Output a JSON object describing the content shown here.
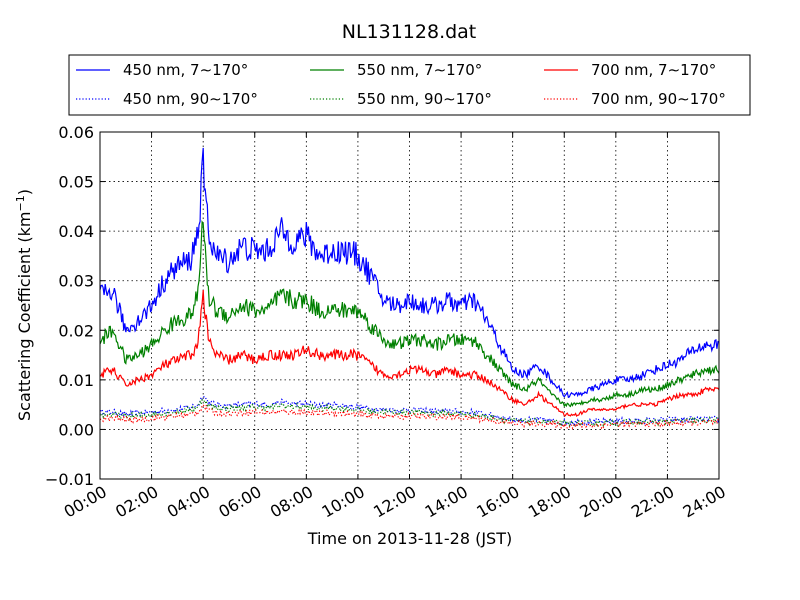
{
  "chart_data": {
    "type": "line",
    "title": "NL131128.dat",
    "xlabel": "Time on 2013-11-28 (JST)",
    "ylabel": "Scattering Coefficient (km",
    "ylabel_exp": "−1",
    "ylabel_close": ")",
    "xlim": [
      0,
      24
    ],
    "ylim": [
      -0.01,
      0.06
    ],
    "x_ticks": [
      {
        "value": 0,
        "label": "00:00"
      },
      {
        "value": 2,
        "label": "02:00"
      },
      {
        "value": 4,
        "label": "04:00"
      },
      {
        "value": 6,
        "label": "06:00"
      },
      {
        "value": 8,
        "label": "08:00"
      },
      {
        "value": 10,
        "label": "10:00"
      },
      {
        "value": 12,
        "label": "12:00"
      },
      {
        "value": 14,
        "label": "14:00"
      },
      {
        "value": 16,
        "label": "16:00"
      },
      {
        "value": 18,
        "label": "18:00"
      },
      {
        "value": 20,
        "label": "20:00"
      },
      {
        "value": 22,
        "label": "22:00"
      },
      {
        "value": 24,
        "label": "24:00"
      }
    ],
    "y_ticks": [
      {
        "value": -0.01,
        "label": "−0.01"
      },
      {
        "value": 0.0,
        "label": "0.00"
      },
      {
        "value": 0.01,
        "label": "0.01"
      },
      {
        "value": 0.02,
        "label": "0.02"
      },
      {
        "value": 0.03,
        "label": "0.03"
      },
      {
        "value": 0.04,
        "label": "0.04"
      },
      {
        "value": 0.05,
        "label": "0.05"
      },
      {
        "value": 0.06,
        "label": "0.06"
      }
    ],
    "grid": true,
    "legend_position": "top, above plot, 3 columns",
    "x": [
      0,
      0.5,
      1,
      1.5,
      2,
      2.5,
      3,
      3.5,
      3.8,
      4,
      4.2,
      4.5,
      5,
      5.5,
      6,
      6.5,
      7,
      7.5,
      8,
      8.5,
      9,
      9.5,
      10,
      10.5,
      11,
      11.5,
      12,
      12.5,
      13,
      13.5,
      14,
      14.5,
      15,
      15.5,
      16,
      16.5,
      17,
      17.5,
      18,
      18.5,
      19,
      19.5,
      20,
      20.5,
      21,
      21.5,
      22,
      22.5,
      23,
      23.5,
      24
    ],
    "series": [
      {
        "name": "450 nm, 7∼170°",
        "color": "#0000ff",
        "style": "solid",
        "values": [
          0.027,
          0.028,
          0.02,
          0.022,
          0.025,
          0.03,
          0.033,
          0.034,
          0.04,
          0.053,
          0.04,
          0.035,
          0.034,
          0.037,
          0.036,
          0.036,
          0.04,
          0.038,
          0.039,
          0.035,
          0.036,
          0.036,
          0.035,
          0.031,
          0.026,
          0.025,
          0.026,
          0.025,
          0.025,
          0.026,
          0.025,
          0.026,
          0.022,
          0.017,
          0.012,
          0.011,
          0.013,
          0.01,
          0.007,
          0.007,
          0.008,
          0.009,
          0.01,
          0.01,
          0.011,
          0.012,
          0.013,
          0.014,
          0.016,
          0.017,
          0.017
        ]
      },
      {
        "name": "550 nm, 7∼170°",
        "color": "#008000",
        "style": "solid",
        "values": [
          0.018,
          0.02,
          0.014,
          0.015,
          0.017,
          0.02,
          0.022,
          0.023,
          0.027,
          0.043,
          0.027,
          0.024,
          0.023,
          0.025,
          0.024,
          0.024,
          0.027,
          0.026,
          0.026,
          0.024,
          0.024,
          0.024,
          0.024,
          0.021,
          0.018,
          0.017,
          0.018,
          0.018,
          0.017,
          0.018,
          0.018,
          0.018,
          0.015,
          0.012,
          0.009,
          0.008,
          0.01,
          0.007,
          0.005,
          0.005,
          0.006,
          0.006,
          0.007,
          0.007,
          0.008,
          0.008,
          0.009,
          0.01,
          0.011,
          0.012,
          0.012
        ]
      },
      {
        "name": "700 nm, 7∼170°",
        "color": "#ff0000",
        "style": "solid",
        "values": [
          0.011,
          0.012,
          0.009,
          0.01,
          0.011,
          0.013,
          0.014,
          0.015,
          0.017,
          0.028,
          0.018,
          0.015,
          0.014,
          0.015,
          0.014,
          0.015,
          0.015,
          0.015,
          0.016,
          0.015,
          0.015,
          0.015,
          0.015,
          0.013,
          0.011,
          0.011,
          0.012,
          0.012,
          0.011,
          0.012,
          0.011,
          0.011,
          0.01,
          0.008,
          0.006,
          0.005,
          0.007,
          0.005,
          0.003,
          0.003,
          0.004,
          0.004,
          0.004,
          0.005,
          0.005,
          0.005,
          0.006,
          0.007,
          0.007,
          0.008,
          0.008
        ]
      },
      {
        "name": "450 nm, 90∼170°",
        "color": "#0000ff",
        "style": "dotted",
        "values": [
          0.0035,
          0.0035,
          0.003,
          0.0033,
          0.0035,
          0.0038,
          0.004,
          0.0045,
          0.005,
          0.007,
          0.0055,
          0.005,
          0.0048,
          0.005,
          0.0052,
          0.005,
          0.0055,
          0.0052,
          0.0052,
          0.0048,
          0.005,
          0.0048,
          0.0045,
          0.0042,
          0.004,
          0.0038,
          0.004,
          0.0038,
          0.0036,
          0.0038,
          0.0035,
          0.0035,
          0.003,
          0.0025,
          0.002,
          0.0018,
          0.002,
          0.0017,
          0.0015,
          0.0015,
          0.0015,
          0.0016,
          0.0017,
          0.0017,
          0.0018,
          0.0018,
          0.0019,
          0.002,
          0.002,
          0.0021,
          0.0021
        ]
      },
      {
        "name": "550 nm, 90∼170°",
        "color": "#008000",
        "style": "dotted",
        "values": [
          0.003,
          0.003,
          0.0026,
          0.0028,
          0.003,
          0.0033,
          0.0035,
          0.004,
          0.0045,
          0.0062,
          0.0048,
          0.0044,
          0.0042,
          0.0044,
          0.0045,
          0.0044,
          0.0048,
          0.0046,
          0.0046,
          0.0042,
          0.0044,
          0.0042,
          0.004,
          0.0037,
          0.0035,
          0.0034,
          0.0035,
          0.0034,
          0.0032,
          0.0033,
          0.0031,
          0.003,
          0.0026,
          0.0022,
          0.0017,
          0.0016,
          0.0017,
          0.0014,
          0.0012,
          0.0012,
          0.0013,
          0.0013,
          0.0014,
          0.0014,
          0.0015,
          0.0015,
          0.0016,
          0.0017,
          0.0017,
          0.0018,
          0.0018
        ]
      },
      {
        "name": "700 nm, 90∼170°",
        "color": "#ff0000",
        "style": "dotted",
        "values": [
          0.0022,
          0.0022,
          0.0019,
          0.002,
          0.0022,
          0.0025,
          0.0027,
          0.003,
          0.0035,
          0.005,
          0.0038,
          0.0034,
          0.0032,
          0.0034,
          0.0035,
          0.0034,
          0.0036,
          0.0035,
          0.0035,
          0.0032,
          0.0034,
          0.0032,
          0.003,
          0.0028,
          0.0027,
          0.0026,
          0.0027,
          0.0026,
          0.0025,
          0.0026,
          0.0024,
          0.0023,
          0.002,
          0.0016,
          0.0012,
          0.0011,
          0.0012,
          0.001,
          0.0008,
          0.0008,
          0.0009,
          0.0009,
          0.001,
          0.001,
          0.0011,
          0.0011,
          0.0012,
          0.0013,
          0.0013,
          0.0014,
          0.0014
        ]
      }
    ]
  }
}
